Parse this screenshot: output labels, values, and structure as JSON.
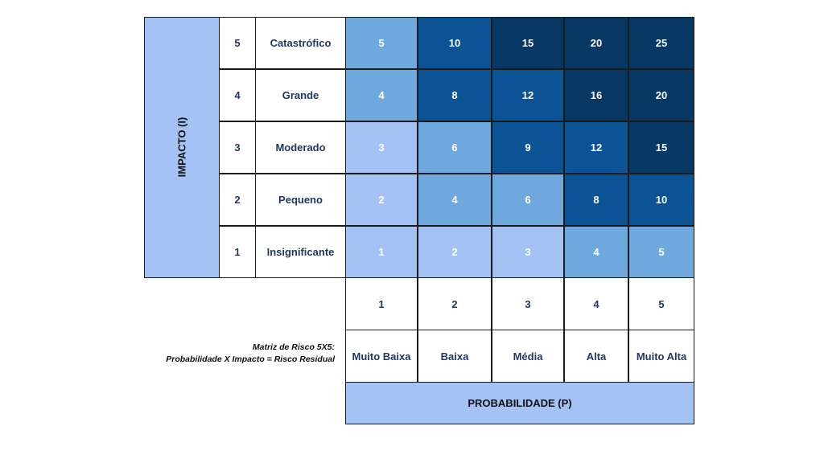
{
  "impact_axis_title": "IMPACTO (I)",
  "probability_axis_title": "PROBABILIDADE  (P)",
  "caption": {
    "line1": "Matriz de Risco 5X5:",
    "line2": "Probabilidade  X Impacto = Risco Residual"
  },
  "impact_levels": [
    {
      "value": "5",
      "label": "Catastrófico"
    },
    {
      "value": "4",
      "label": "Grande"
    },
    {
      "value": "3",
      "label": "Moderado"
    },
    {
      "value": "2",
      "label": "Pequeno"
    },
    {
      "value": "1",
      "label": "Insignificante"
    }
  ],
  "probability_levels": [
    {
      "value": "1",
      "label": "Muito Baixa"
    },
    {
      "value": "2",
      "label": "Baixa"
    },
    {
      "value": "3",
      "label": "Média"
    },
    {
      "value": "4",
      "label": "Alta"
    },
    {
      "value": "5",
      "label": "Muito Alta"
    }
  ],
  "matrix": [
    [
      "5",
      "10",
      "15",
      "20",
      "25"
    ],
    [
      "4",
      "8",
      "12",
      "16",
      "20"
    ],
    [
      "3",
      "6",
      "9",
      "12",
      "15"
    ],
    [
      "2",
      "4",
      "6",
      "8",
      "10"
    ],
    [
      "1",
      "2",
      "3",
      "4",
      "5"
    ]
  ],
  "colors": {
    "very_low": "#a4c2f4",
    "low": "#6fa8dc",
    "high": "#0b5394",
    "very_high": "#073763",
    "band": "#a4c2f4"
  },
  "matrix_color_levels": [
    [
      "low",
      "high",
      "very_high",
      "very_high",
      "very_high"
    ],
    [
      "low",
      "high",
      "high",
      "very_high",
      "very_high"
    ],
    [
      "very_low",
      "low",
      "high",
      "high",
      "very_high"
    ],
    [
      "very_low",
      "low",
      "low",
      "high",
      "high"
    ],
    [
      "very_low",
      "very_low",
      "very_low",
      "low",
      "low"
    ]
  ]
}
